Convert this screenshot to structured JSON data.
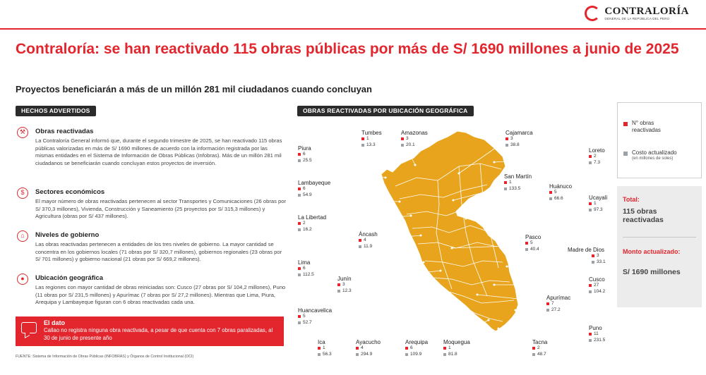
{
  "brand": {
    "name": "CONTRALORÍA",
    "sub": "GENERAL DE LA REPÚBLICA DEL PERÚ",
    "accent": "#e3262e",
    "map_color": "#e8a41c"
  },
  "title": "Contraloría: se han reactivado 115 obras públicas por más de S/ 1690 millones a junio de 2025",
  "subtitle": "Proyectos beneficiarán a más de un millón 281 mil ciudadanos cuando concluyan",
  "left_pill": "HECHOS ADVERTIDOS",
  "map_pill": "OBRAS REACTIVADAS POR UBICACIÓN GEOGRÁFICA",
  "sections": [
    {
      "icon": "construction-icon",
      "heading": "Obras reactivadas",
      "body": "La Contraloría General informó que, durante el segundo trimestre de 2025, se han reactivado 115 obras públicas valorizadas en más de S/ 1690 millones de acuerdo con la información registrada por las mismas entidades en el Sistema de Información de Obras Públicas (Infobras). Más de un millón 281 mil ciudadanos se beneficiarán cuando concluyan estos proyectos de inversión."
    },
    {
      "icon": "money-bag-icon",
      "heading": "Sectores económicos",
      "body": "El mayor número de obras reactivadas pertenecen al sector Transportes y Comunicaciones (26 obras por S/ 370,3 millones), Vivienda, Construcción y Saneamiento (25 proyectos por S/ 315,3 millones) y Agricultura (obras por S/ 437 millones)."
    },
    {
      "icon": "government-building-icon",
      "heading": "Niveles de gobierno",
      "body": "Las obras reactivadas pertenecen a entidades de los tres niveles de gobierno. La mayor cantidad se concentra en los gobiernos locales (71 obras por S/ 320,7 millones), gobiernos regionales (23 obras por S/ 701 millones) y gobierno nacional (21 obras por S/ 669,2 millones)."
    },
    {
      "icon": "location-pin-icon",
      "heading": "Ubicación geográfica",
      "body": "Las regiones con mayor cantidad de obras reiniciadas son: Cusco (27 obras por S/ 104,2 millones), Puno (11 obras por S/ 231,5 millones) y Apurímac (7 obras por S/ 27,2 millones). Mientras que Lima, Piura, Arequipa y Lambayeque figuran con 6 obras reactivadas cada una."
    }
  ],
  "dato": {
    "heading": "El dato",
    "body": "Callao no registra ninguna obra reactivada, a pesar de que cuenta con 7 obras paralizadas, al 30 de junio de presente año"
  },
  "source": "FUENTE: Sistema de Información de Obras Públicas (INFOBRAS) y Órganos de Control Institucional (OCI)",
  "regions": [
    {
      "name": "Tumbes",
      "count": "1",
      "cost": "13.3"
    },
    {
      "name": "Amazonas",
      "count": "3",
      "cost": "20.1"
    },
    {
      "name": "Cajamarca",
      "count": "3",
      "cost": "38.8"
    },
    {
      "name": "Piura",
      "count": "6",
      "cost": "25.5"
    },
    {
      "name": "Loreto",
      "count": "2",
      "cost": "7.3"
    },
    {
      "name": "San Martín",
      "count": "1",
      "cost": "133.5"
    },
    {
      "name": "Lambayeque",
      "count": "6",
      "cost": "54.9"
    },
    {
      "name": "Huánuco",
      "count": "5",
      "cost": "66.6"
    },
    {
      "name": "Ucayali",
      "count": "1",
      "cost": "97.3"
    },
    {
      "name": "La Libertad",
      "count": "2",
      "cost": "16.2"
    },
    {
      "name": "Áncash",
      "count": "4",
      "cost": "11.9"
    },
    {
      "name": "Pasco",
      "count": "5",
      "cost": "40.4"
    },
    {
      "name": "Madre de Dios",
      "count": "3",
      "cost": "33.1"
    },
    {
      "name": "Lima",
      "count": "6",
      "cost": "112.5"
    },
    {
      "name": "Junín",
      "count": "3",
      "cost": "12.3"
    },
    {
      "name": "Cusco",
      "count": "27",
      "cost": "104.2"
    },
    {
      "name": "Apurímac",
      "count": "7",
      "cost": "27.2"
    },
    {
      "name": "Huancavelica",
      "count": "5",
      "cost": "52.7"
    },
    {
      "name": "Puno",
      "count": "11",
      "cost": "231.5"
    },
    {
      "name": "Ica",
      "count": "1",
      "cost": "56.3"
    },
    {
      "name": "Ayacucho",
      "count": "4",
      "cost": "294.9"
    },
    {
      "name": "Arequipa",
      "count": "6",
      "cost": "109.9"
    },
    {
      "name": "Moquegua",
      "count": "1",
      "cost": "81.8"
    },
    {
      "name": "Tacna",
      "count": "2",
      "cost": "48.7"
    }
  ],
  "legend": {
    "count_label": "N° obras reactivadas",
    "cost_label": "Costo actualizado",
    "cost_sub": "(en millones de soles)"
  },
  "totals": {
    "total_label": "Total:",
    "total_value": "115 obras reactivadas",
    "amount_label": "Monto actualizado:",
    "amount_value": "S/ 1690 millones"
  }
}
